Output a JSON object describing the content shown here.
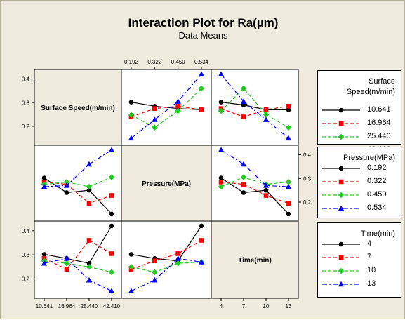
{
  "title": "Interaction Plot for Ra(µm)",
  "subtitle": "Data Means",
  "chart_data": {
    "type": "line",
    "title": "Interaction Plot for Ra(µm)",
    "subtitle": "Data Means",
    "factors": [
      {
        "key": "speed",
        "name": "Surface Speed(m/min)",
        "legend_title_lines": [
          "Surface",
          "Speed(m/min)"
        ],
        "levels": [
          "10.641",
          "16.964",
          "25.440",
          "42.410"
        ]
      },
      {
        "key": "pressure",
        "name": "Pressure(MPa)",
        "legend_title_lines": [
          "Pressure(MPa)"
        ],
        "levels": [
          "0.192",
          "0.322",
          "0.450",
          "0.534"
        ]
      },
      {
        "key": "time",
        "name": "Time(min)",
        "legend_title_lines": [
          "Time(min)"
        ],
        "levels": [
          "4",
          "7",
          "10",
          "13"
        ]
      }
    ],
    "ylim": [
      0.12,
      0.44
    ],
    "y_ticks": [
      0.2,
      0.3,
      0.4
    ],
    "y_tick_labels": [
      "0.2",
      "0.3",
      "0.4"
    ],
    "level_styles": [
      {
        "color": "#000000",
        "marker": "circle",
        "dash": "solid"
      },
      {
        "color": "#ff0000",
        "marker": "square",
        "dash": "dashed"
      },
      {
        "color": "#22cc22",
        "marker": "diamond",
        "dash": "dashed"
      },
      {
        "color": "#0000ff",
        "marker": "triangle",
        "dash": "dashdot"
      }
    ],
    "panels": [
      {
        "row": 0,
        "col": 1,
        "x_factor": "pressure",
        "trace_factor": "speed",
        "series": [
          {
            "trace_level": "10.641",
            "values": [
              0.302,
              0.285,
              0.275,
              0.27
            ]
          },
          {
            "trace_level": "16.964",
            "values": [
              0.24,
              0.275,
              0.285,
              0.27
            ]
          },
          {
            "trace_level": "25.440",
            "values": [
              0.248,
              0.195,
              0.265,
              0.36
            ]
          },
          {
            "trace_level": "42.410",
            "values": [
              0.15,
              0.228,
              0.305,
              0.42
            ]
          }
        ]
      },
      {
        "row": 0,
        "col": 2,
        "x_factor": "time",
        "trace_factor": "speed",
        "series": [
          {
            "trace_level": "10.641",
            "values": [
              0.302,
              0.29,
              0.27,
              0.27
            ]
          },
          {
            "trace_level": "16.964",
            "values": [
              0.275,
              0.24,
              0.27,
              0.285
            ]
          },
          {
            "trace_level": "25.440",
            "values": [
              0.265,
              0.36,
              0.25,
              0.195
            ]
          },
          {
            "trace_level": "42.410",
            "values": [
              0.42,
              0.305,
              0.228,
              0.15
            ]
          }
        ]
      },
      {
        "row": 1,
        "col": 0,
        "x_factor": "speed",
        "trace_factor": "pressure",
        "series": [
          {
            "trace_level": "0.192",
            "values": [
              0.302,
              0.24,
              0.25,
              0.15
            ]
          },
          {
            "trace_level": "0.322",
            "values": [
              0.285,
              0.275,
              0.195,
              0.228
            ]
          },
          {
            "trace_level": "0.450",
            "values": [
              0.275,
              0.285,
              0.265,
              0.305
            ]
          },
          {
            "trace_level": "0.534",
            "values": [
              0.265,
              0.27,
              0.36,
              0.42
            ]
          }
        ]
      },
      {
        "row": 1,
        "col": 2,
        "x_factor": "time",
        "trace_factor": "pressure",
        "series": [
          {
            "trace_level": "0.192",
            "values": [
              0.302,
              0.24,
              0.25,
              0.15
            ]
          },
          {
            "trace_level": "0.322",
            "values": [
              0.285,
              0.275,
              0.228,
              0.195
            ]
          },
          {
            "trace_level": "0.450",
            "values": [
              0.265,
              0.305,
              0.275,
              0.285
            ]
          },
          {
            "trace_level": "0.534",
            "values": [
              0.42,
              0.36,
              0.27,
              0.265
            ]
          }
        ]
      },
      {
        "row": 2,
        "col": 0,
        "x_factor": "speed",
        "trace_factor": "time",
        "series": [
          {
            "trace_level": "4",
            "values": [
              0.302,
              0.285,
              0.265,
              0.42
            ]
          },
          {
            "trace_level": "7",
            "values": [
              0.285,
              0.24,
              0.36,
              0.305
            ]
          },
          {
            "trace_level": "10",
            "values": [
              0.275,
              0.265,
              0.25,
              0.228
            ]
          },
          {
            "trace_level": "13",
            "values": [
              0.265,
              0.285,
              0.195,
              0.15
            ]
          }
        ]
      },
      {
        "row": 2,
        "col": 1,
        "x_factor": "pressure",
        "trace_factor": "time",
        "series": [
          {
            "trace_level": "4",
            "values": [
              0.302,
              0.285,
              0.275,
              0.42
            ]
          },
          {
            "trace_level": "7",
            "values": [
              0.24,
              0.275,
              0.305,
              0.36
            ]
          },
          {
            "trace_level": "10",
            "values": [
              0.25,
              0.228,
              0.265,
              0.27
            ]
          },
          {
            "trace_level": "13",
            "values": [
              0.15,
              0.195,
              0.285,
              0.27
            ]
          }
        ]
      }
    ]
  }
}
